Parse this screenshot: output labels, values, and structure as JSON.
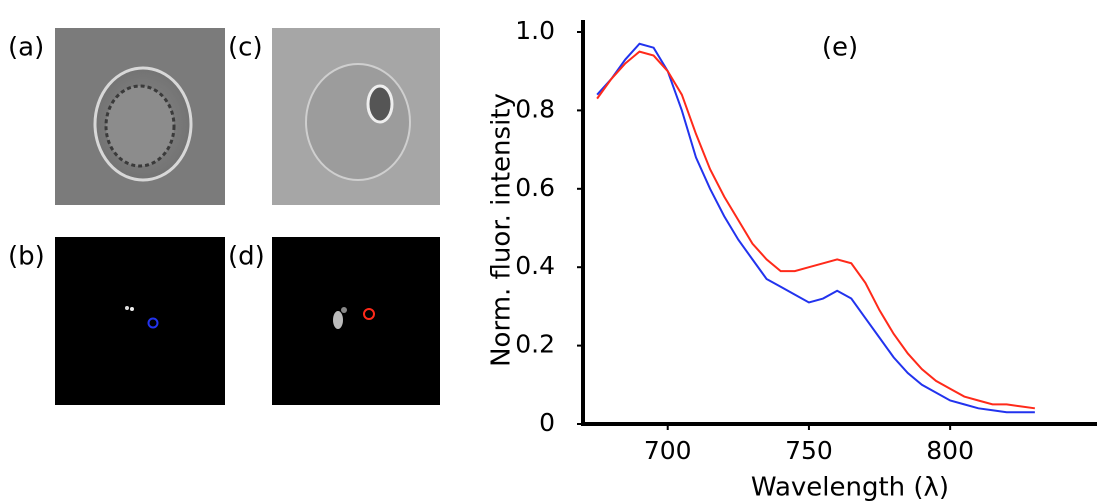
{
  "panels": {
    "labels": [
      "(a)",
      "(b)",
      "(c)",
      "(d)"
    ]
  },
  "chart_data": {
    "type": "line",
    "annotation": "(e)",
    "x_label": "Wavelength (λ)",
    "y_label": "Norm. fluor. intensity",
    "x": [
      675,
      680,
      685,
      690,
      695,
      700,
      705,
      710,
      715,
      720,
      725,
      730,
      735,
      740,
      745,
      750,
      755,
      760,
      765,
      770,
      775,
      780,
      785,
      790,
      795,
      800,
      805,
      810,
      815,
      820,
      825,
      830
    ],
    "series": [
      {
        "color": "#2233ee",
        "values": [
          0.84,
          0.88,
          0.93,
          0.97,
          0.96,
          0.9,
          0.8,
          0.68,
          0.6,
          0.53,
          0.47,
          0.42,
          0.37,
          0.35,
          0.33,
          0.31,
          0.32,
          0.34,
          0.32,
          0.27,
          0.22,
          0.17,
          0.13,
          0.1,
          0.08,
          0.06,
          0.05,
          0.04,
          0.035,
          0.03,
          0.03,
          0.03
        ]
      },
      {
        "color": "#ff2a1a",
        "values": [
          0.83,
          0.88,
          0.92,
          0.95,
          0.94,
          0.9,
          0.84,
          0.74,
          0.65,
          0.58,
          0.52,
          0.46,
          0.42,
          0.39,
          0.39,
          0.4,
          0.41,
          0.42,
          0.41,
          0.36,
          0.29,
          0.23,
          0.18,
          0.14,
          0.11,
          0.09,
          0.07,
          0.06,
          0.05,
          0.05,
          0.045,
          0.04
        ]
      }
    ],
    "xlim": [
      670,
      852
    ],
    "ylim": [
      0,
      1
    ],
    "xticks": [
      700,
      750,
      800
    ],
    "yticks": [
      0,
      0.2,
      0.4,
      0.6,
      0.8,
      {
        "value": 1,
        "label": "1.0"
      }
    ]
  }
}
